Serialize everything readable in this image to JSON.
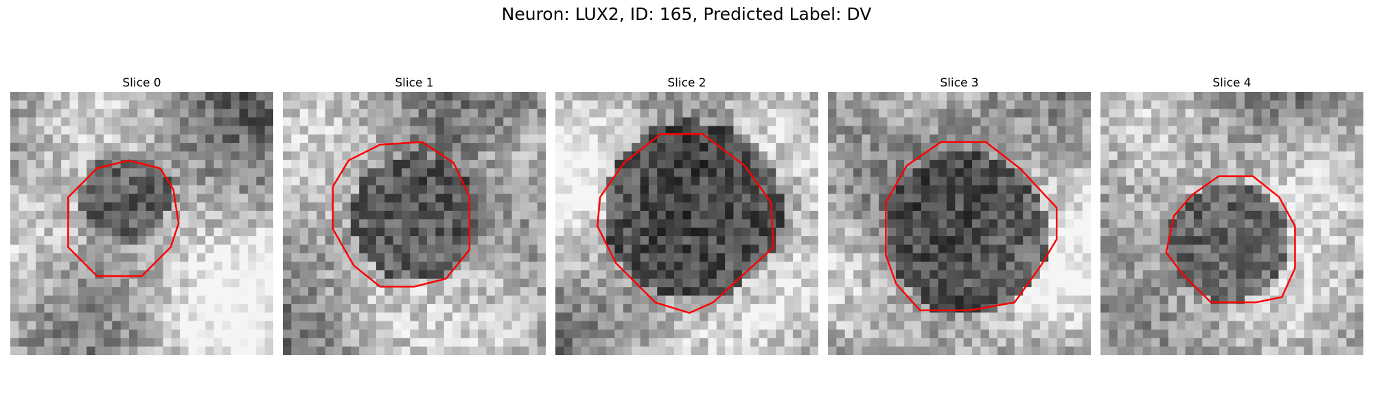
{
  "figure": {
    "title": "Neuron: LUX2, ID: 165, Predicted Label: DV"
  },
  "panels": [
    {
      "title": "Slice 0",
      "seed": 11,
      "outline_color": "#ff0000"
    },
    {
      "title": "Slice 1",
      "seed": 23,
      "outline_color": "#ff0000"
    },
    {
      "title": "Slice 2",
      "seed": 37,
      "outline_color": "#ff0000"
    },
    {
      "title": "Slice 3",
      "seed": 41,
      "outline_color": "#ff0000"
    },
    {
      "title": "Slice 4",
      "seed": 53,
      "outline_color": "#ff0000"
    }
  ]
}
